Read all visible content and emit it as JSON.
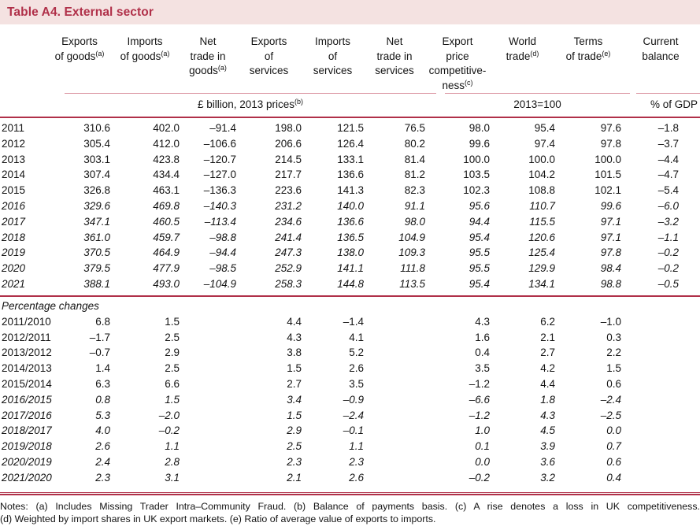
{
  "title": "Table A4. External sector",
  "colors": {
    "accent": "#b03049",
    "thin_rule": "#d9919e",
    "title_bar_bg": "#f4e2e1"
  },
  "table": {
    "columns": [
      {
        "id": "exports-of-goods",
        "lines": [
          "Exports",
          "of goods"
        ],
        "sup": "(a)"
      },
      {
        "id": "imports-of-goods",
        "lines": [
          "Imports",
          "of goods"
        ],
        "sup": "(a)"
      },
      {
        "id": "net-trade-in-goods",
        "lines": [
          "Net",
          "trade in",
          "goods"
        ],
        "sup": "(a)"
      },
      {
        "id": "exports-of-services",
        "lines": [
          "Exports",
          "of",
          "services"
        ],
        "sup": ""
      },
      {
        "id": "imports-of-services",
        "lines": [
          "Imports",
          "of",
          "services"
        ],
        "sup": ""
      },
      {
        "id": "net-trade-in-services",
        "lines": [
          "Net",
          "trade in",
          "services"
        ],
        "sup": ""
      },
      {
        "id": "export-price-competitiveness",
        "lines": [
          "Export",
          "price",
          "competitive-",
          "ness"
        ],
        "sup": "(c)"
      },
      {
        "id": "world-trade",
        "lines": [
          "World",
          "trade"
        ],
        "sup": "(d)"
      },
      {
        "id": "terms-of-trade",
        "lines": [
          "Terms",
          "of trade"
        ],
        "sup": "(e)"
      },
      {
        "id": "current-balance",
        "lines": [
          "Current",
          "balance"
        ],
        "sup": ""
      }
    ],
    "units": [
      {
        "label": "£ billion, 2013 prices",
        "sup": "(b)",
        "span": 6
      },
      {
        "label": "2013=100",
        "sup": "",
        "span": 3
      },
      {
        "label": "% of GDP",
        "sup": "",
        "span": 1
      }
    ],
    "sections": [
      {
        "name": "levels",
        "label": "",
        "rows": [
          {
            "label": "2011",
            "italic": false,
            "values": [
              "310.6",
              "402.0",
              "–91.4",
              "198.0",
              "121.5",
              "76.5",
              "98.0",
              "95.4",
              "97.6",
              "–1.8"
            ]
          },
          {
            "label": "2012",
            "italic": false,
            "values": [
              "305.4",
              "412.0",
              "–106.6",
              "206.6",
              "126.4",
              "80.2",
              "99.6",
              "97.4",
              "97.8",
              "–3.7"
            ]
          },
          {
            "label": "2013",
            "italic": false,
            "values": [
              "303.1",
              "423.8",
              "–120.7",
              "214.5",
              "133.1",
              "81.4",
              "100.0",
              "100.0",
              "100.0",
              "–4.4"
            ]
          },
          {
            "label": "2014",
            "italic": false,
            "values": [
              "307.4",
              "434.4",
              "–127.0",
              "217.7",
              "136.6",
              "81.2",
              "103.5",
              "104.2",
              "101.5",
              "–4.7"
            ]
          },
          {
            "label": "2015",
            "italic": false,
            "values": [
              "326.8",
              "463.1",
              "–136.3",
              "223.6",
              "141.3",
              "82.3",
              "102.3",
              "108.8",
              "102.1",
              "–5.4"
            ]
          },
          {
            "label": "2016",
            "italic": true,
            "values": [
              "329.6",
              "469.8",
              "–140.3",
              "231.2",
              "140.0",
              "91.1",
              "95.6",
              "110.7",
              "99.6",
              "–6.0"
            ]
          },
          {
            "label": "2017",
            "italic": true,
            "values": [
              "347.1",
              "460.5",
              "–113.4",
              "234.6",
              "136.6",
              "98.0",
              "94.4",
              "115.5",
              "97.1",
              "–3.2"
            ]
          },
          {
            "label": "2018",
            "italic": true,
            "values": [
              "361.0",
              "459.7",
              "–98.8",
              "241.4",
              "136.5",
              "104.9",
              "95.4",
              "120.6",
              "97.1",
              "–1.1"
            ]
          },
          {
            "label": "2019",
            "italic": true,
            "values": [
              "370.5",
              "464.9",
              "–94.4",
              "247.3",
              "138.0",
              "109.3",
              "95.5",
              "125.4",
              "97.8",
              "–0.2"
            ]
          },
          {
            "label": "2020",
            "italic": true,
            "values": [
              "379.5",
              "477.9",
              "–98.5",
              "252.9",
              "141.1",
              "111.8",
              "95.5",
              "129.9",
              "98.4",
              "–0.2"
            ]
          },
          {
            "label": "2021",
            "italic": true,
            "values": [
              "388.1",
              "493.0",
              "–104.9",
              "258.3",
              "144.8",
              "113.5",
              "95.4",
              "134.1",
              "98.8",
              "–0.5"
            ]
          }
        ]
      },
      {
        "name": "percentage-changes",
        "label": "Percentage changes",
        "rows": [
          {
            "label": "2011/2010",
            "italic": false,
            "values": [
              "6.8",
              "1.5",
              "",
              "4.4",
              "–1.4",
              "",
              "4.3",
              "6.2",
              "–1.0",
              ""
            ]
          },
          {
            "label": "2012/2011",
            "italic": false,
            "values": [
              "–1.7",
              "2.5",
              "",
              "4.3",
              "4.1",
              "",
              "1.6",
              "2.1",
              "0.3",
              ""
            ]
          },
          {
            "label": "2013/2012",
            "italic": false,
            "values": [
              "–0.7",
              "2.9",
              "",
              "3.8",
              "5.2",
              "",
              "0.4",
              "2.7",
              "2.2",
              ""
            ]
          },
          {
            "label": "2014/2013",
            "italic": false,
            "values": [
              "1.4",
              "2.5",
              "",
              "1.5",
              "2.6",
              "",
              "3.5",
              "4.2",
              "1.5",
              ""
            ]
          },
          {
            "label": "2015/2014",
            "italic": false,
            "values": [
              "6.3",
              "6.6",
              "",
              "2.7",
              "3.5",
              "",
              "–1.2",
              "4.4",
              "0.6",
              ""
            ]
          },
          {
            "label": "2016/2015",
            "italic": true,
            "values": [
              "0.8",
              "1.5",
              "",
              "3.4",
              "–0.9",
              "",
              "–6.6",
              "1.8",
              "–2.4",
              ""
            ]
          },
          {
            "label": "2017/2016",
            "italic": true,
            "values": [
              "5.3",
              "–2.0",
              "",
              "1.5",
              "–2.4",
              "",
              "–1.2",
              "4.3",
              "–2.5",
              ""
            ]
          },
          {
            "label": "2018/2017",
            "italic": true,
            "values": [
              "4.0",
              "–0.2",
              "",
              "2.9",
              "–0.1",
              "",
              "1.0",
              "4.5",
              "0.0",
              ""
            ]
          },
          {
            "label": "2019/2018",
            "italic": true,
            "values": [
              "2.6",
              "1.1",
              "",
              "2.5",
              "1.1",
              "",
              "0.1",
              "3.9",
              "0.7",
              ""
            ]
          },
          {
            "label": "2020/2019",
            "italic": true,
            "values": [
              "2.4",
              "2.8",
              "",
              "2.3",
              "2.3",
              "",
              "0.0",
              "3.6",
              "0.6",
              ""
            ]
          },
          {
            "label": "2021/2020",
            "italic": true,
            "values": [
              "2.3",
              "3.1",
              "",
              "2.1",
              "2.6",
              "",
              "–0.2",
              "3.2",
              "0.4",
              ""
            ]
          }
        ]
      }
    ]
  },
  "notes": {
    "line1": "Notes: (a) Includes Missing Trader Intra–Community Fraud. (b) Balance of payments basis. (c) A rise denotes a loss in UK competitiveness.",
    "line2": "(d) Weighted by import shares in UK export markets. (e) Ratio of average value of exports to imports."
  }
}
